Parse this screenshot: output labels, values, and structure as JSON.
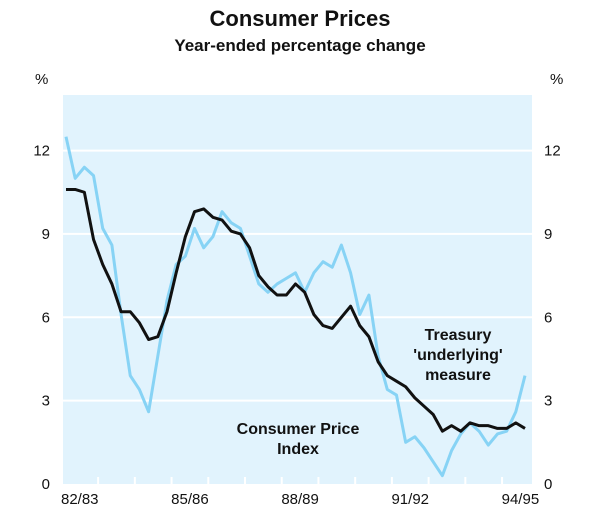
{
  "chart_data": {
    "type": "line",
    "title": "Consumer Prices",
    "subtitle": "Year-ended percentage change",
    "ylabel_left": "%",
    "ylabel_right": "%",
    "ylim": [
      0,
      14
    ],
    "yticks": [
      0,
      3,
      6,
      9,
      12
    ],
    "frequency": "quarterly",
    "x_tick_labels": [
      "82/83",
      "85/86",
      "88/89",
      "91/92",
      "94/95"
    ],
    "grid": true,
    "series": [
      {
        "name": "Consumer Price Index",
        "color": "#87d3f5",
        "values": [
          12.5,
          11.0,
          11.4,
          11.1,
          9.2,
          8.6,
          6.1,
          3.9,
          3.4,
          2.6,
          4.6,
          6.6,
          7.9,
          8.2,
          9.2,
          8.5,
          8.9,
          9.8,
          9.4,
          9.2,
          8.2,
          7.2,
          6.9,
          7.2,
          7.4,
          7.6,
          6.9,
          7.6,
          8.0,
          7.8,
          8.6,
          7.6,
          6.1,
          6.8,
          4.6,
          3.4,
          3.2,
          1.5,
          1.7,
          1.3,
          0.8,
          0.3,
          1.2,
          1.8,
          2.2,
          1.9,
          1.4,
          1.8,
          1.9,
          2.6,
          3.9
        ]
      },
      {
        "name": "Treasury 'underlying' measure",
        "color": "#111111",
        "values": [
          10.6,
          10.6,
          10.5,
          8.8,
          7.9,
          7.2,
          6.2,
          6.2,
          5.8,
          5.2,
          5.3,
          6.2,
          7.6,
          8.9,
          9.8,
          9.9,
          9.6,
          9.5,
          9.1,
          9.0,
          8.5,
          7.5,
          7.1,
          6.8,
          6.8,
          7.2,
          6.9,
          6.1,
          5.7,
          5.6,
          6.0,
          6.4,
          5.7,
          5.3,
          4.4,
          3.9,
          3.7,
          3.5,
          3.1,
          2.8,
          2.5,
          1.9,
          2.1,
          1.9,
          2.2,
          2.1,
          2.1,
          2.0,
          2.0,
          2.2,
          2.0
        ]
      }
    ],
    "annotations": {
      "cpi": [
        "Consumer Price",
        "Index"
      ],
      "underlying": [
        "Treasury",
        "'underlying'",
        "measure"
      ]
    }
  }
}
